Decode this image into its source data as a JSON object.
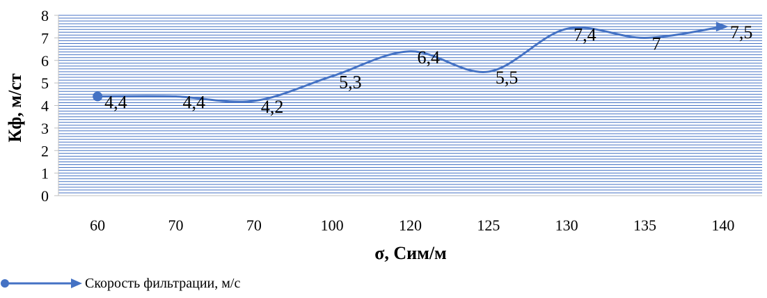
{
  "chart_data": {
    "type": "line",
    "categories": [
      "60",
      "70",
      "70",
      "100",
      "120",
      "125",
      "130",
      "135",
      "140"
    ],
    "series": [
      {
        "name": "Скорость фильтрации, м/с",
        "values": [
          4.4,
          4.4,
          4.2,
          5.3,
          6.4,
          5.5,
          7.4,
          7,
          7.5
        ],
        "data_labels": [
          "4,4",
          "4,4",
          "4,2",
          "5,3",
          "6,4",
          "5,5",
          "7,4",
          "7",
          "7,5"
        ],
        "color": "#4472C4"
      }
    ],
    "xlabel": "σ, Сим/м",
    "ylabel": "Кф, м/ст",
    "ylim": [
      0,
      8
    ],
    "yticks": [
      "0",
      "1",
      "2",
      "3",
      "4",
      "5",
      "6",
      "7",
      "8"
    ],
    "grid": "horizontal",
    "grid_color": "#4472C4",
    "smooth": true,
    "legend_position": "bottom-left"
  }
}
